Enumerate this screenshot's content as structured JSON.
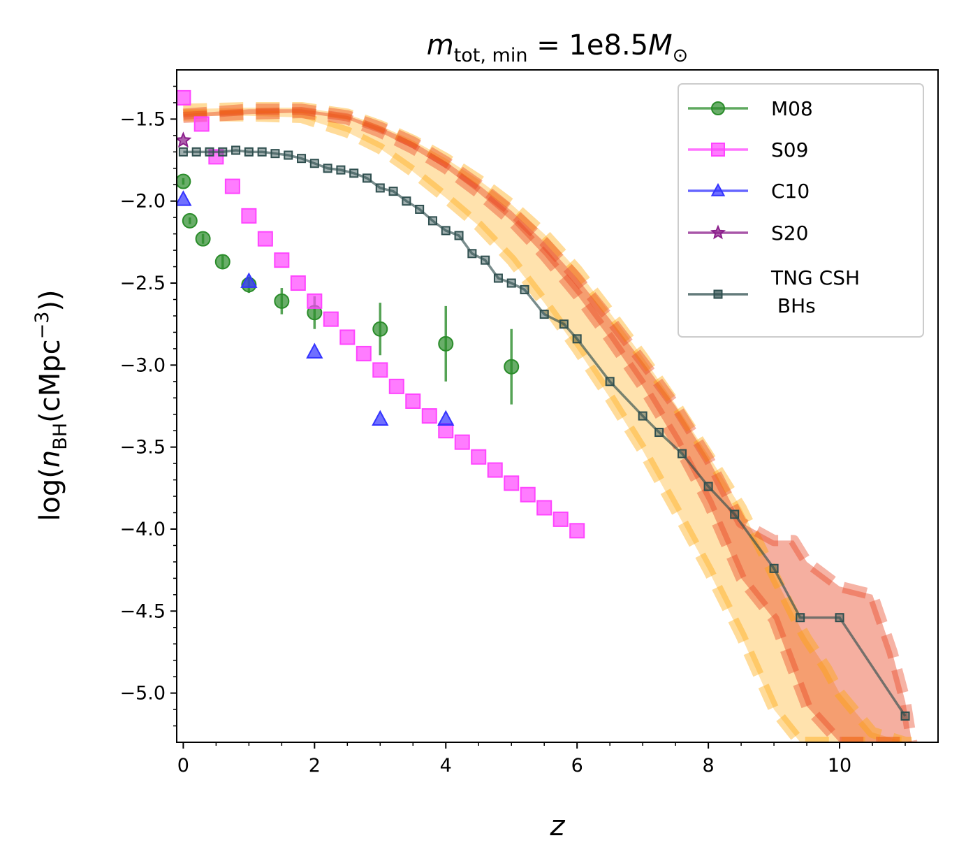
{
  "chart_data": {
    "type": "line",
    "title": "m_tot,min = 1e8.5 M_⊙",
    "title_parts": {
      "m": "m",
      "sub": "tot, min",
      "eq": " = 1e8.5",
      "M": "M",
      "sun": "⊙"
    },
    "xlabel": "z",
    "ylabel_parts": {
      "pre": "log(",
      "n": "n",
      "sub": "BH",
      "mid": "(cMpc",
      "sup": "−3",
      "post": "))"
    },
    "xlim": [
      -0.1,
      11.5
    ],
    "ylim": [
      -5.3,
      -1.2
    ],
    "x_ticks": [
      0,
      2,
      4,
      6,
      8,
      10
    ],
    "x_tick_labels": [
      "0",
      "2",
      "4",
      "6",
      "8",
      "10"
    ],
    "y_ticks": [
      -1.5,
      -2.0,
      -2.5,
      -3.0,
      -3.5,
      -4.0,
      -4.5,
      -5.0
    ],
    "y_tick_labels": [
      "−1.5",
      "−2.0",
      "−2.5",
      "−3.0",
      "−3.5",
      "−4.0",
      "−4.5",
      "−5.0"
    ],
    "legend_position": "upper right",
    "series": [
      {
        "name": "M08",
        "marker": "circle",
        "color": "#2a8c2a",
        "x": [
          0.0,
          0.1,
          0.3,
          0.6,
          1.0,
          1.5,
          2.0,
          3.0,
          4.0,
          5.0
        ],
        "y": [
          -1.88,
          -2.12,
          -2.23,
          -2.37,
          -2.51,
          -2.61,
          -2.68,
          -2.78,
          -2.87,
          -3.01
        ],
        "yerr": [
          0.02,
          0.02,
          0.03,
          0.04,
          0.05,
          0.08,
          0.1,
          0.16,
          0.23,
          0.23
        ]
      },
      {
        "name": "S09",
        "marker": "square",
        "color": "#ff44ff",
        "x": [
          0.0,
          0.28,
          0.5,
          0.75,
          1.0,
          1.25,
          1.5,
          1.75,
          2.0,
          2.25,
          2.5,
          2.75,
          3.0,
          3.25,
          3.5,
          3.75,
          4.0,
          4.25,
          4.5,
          4.75,
          5.0,
          5.25,
          5.5,
          5.75,
          6.0
        ],
        "y": [
          -1.37,
          -1.53,
          -1.73,
          -1.91,
          -2.09,
          -2.23,
          -2.36,
          -2.5,
          -2.61,
          -2.72,
          -2.83,
          -2.93,
          -3.03,
          -3.13,
          -3.22,
          -3.31,
          -3.4,
          -3.47,
          -3.56,
          -3.64,
          -3.72,
          -3.79,
          -3.87,
          -3.94,
          -4.01
        ]
      },
      {
        "name": "C10",
        "marker": "triangle",
        "color": "#3333ff",
        "x": [
          0.0,
          1.0,
          2.0,
          3.0,
          4.0
        ],
        "y": [
          -1.99,
          -2.49,
          -2.92,
          -3.33,
          -3.33
        ]
      },
      {
        "name": "S20",
        "marker": "star",
        "color": "#8b1e8b",
        "x": [
          0.0
        ],
        "y": [
          -1.63
        ]
      },
      {
        "name": "TNG CSH BHs",
        "marker": "small-square",
        "color": "#2f4f4f",
        "x": [
          0.0,
          0.2,
          0.4,
          0.6,
          0.8,
          1.0,
          1.2,
          1.4,
          1.6,
          1.8,
          2.0,
          2.2,
          2.4,
          2.6,
          2.8,
          3.0,
          3.2,
          3.4,
          3.6,
          3.8,
          4.0,
          4.2,
          4.4,
          4.6,
          4.8,
          5.0,
          5.2,
          5.5,
          5.8,
          6.0,
          6.5,
          7.0,
          7.25,
          7.6,
          8.0,
          8.4,
          9.0,
          9.4,
          10.0,
          11.0
        ],
        "y": [
          -1.7,
          -1.7,
          -1.7,
          -1.7,
          -1.69,
          -1.7,
          -1.7,
          -1.71,
          -1.72,
          -1.74,
          -1.77,
          -1.8,
          -1.81,
          -1.83,
          -1.86,
          -1.92,
          -1.94,
          -2.0,
          -2.05,
          -2.12,
          -2.18,
          -2.21,
          -2.32,
          -2.36,
          -2.47,
          -2.5,
          -2.54,
          -2.69,
          -2.75,
          -2.84,
          -3.1,
          -3.31,
          -3.41,
          -3.54,
          -3.74,
          -3.91,
          -4.24,
          -4.54,
          -4.54,
          -5.14
        ]
      },
      {
        "name": "orange-band",
        "role": "shaded region (legend-less)",
        "color": "#ffa500",
        "x": [
          0.0,
          1.0,
          1.8,
          2.5,
          3.0,
          3.5,
          4.0,
          4.5,
          5.0,
          5.5,
          6.0,
          6.5,
          7.0,
          7.5,
          8.0,
          8.5,
          9.0,
          9.4,
          9.5,
          9.8,
          10.0,
          10.5,
          11.0,
          11.1
        ],
        "y_upper": [
          -1.44,
          -1.43,
          -1.43,
          -1.47,
          -1.54,
          -1.63,
          -1.74,
          -1.87,
          -2.02,
          -2.2,
          -2.42,
          -2.68,
          -2.95,
          -3.24,
          -3.55,
          -3.87,
          -4.28,
          -4.6,
          -4.67,
          -4.85,
          -5.0,
          -5.24,
          -5.3,
          -5.3
        ],
        "y_lower": [
          -1.48,
          -1.48,
          -1.49,
          -1.58,
          -1.68,
          -1.82,
          -1.98,
          -2.15,
          -2.36,
          -2.62,
          -2.9,
          -3.2,
          -3.52,
          -3.88,
          -4.25,
          -4.65,
          -5.1,
          -5.3,
          -5.3,
          -5.3,
          -5.3,
          -5.3,
          -5.3,
          -5.3
        ]
      },
      {
        "name": "red-band",
        "role": "shaded region (legend-less)",
        "color": "#e8411d",
        "x": [
          0.0,
          1.0,
          1.8,
          2.5,
          3.0,
          3.5,
          4.0,
          4.5,
          5.0,
          5.5,
          6.0,
          6.5,
          7.0,
          7.5,
          8.0,
          8.5,
          9.0,
          9.3,
          9.5,
          10.0,
          10.5,
          10.8,
          11.0,
          11.1
        ],
        "y_upper": [
          -1.47,
          -1.44,
          -1.44,
          -1.48,
          -1.55,
          -1.64,
          -1.76,
          -1.9,
          -2.06,
          -2.25,
          -2.47,
          -2.72,
          -2.98,
          -3.25,
          -3.57,
          -3.96,
          -4.07,
          -4.07,
          -4.2,
          -4.35,
          -4.4,
          -4.75,
          -5.05,
          -5.3
        ],
        "y_lower": [
          -1.49,
          -1.47,
          -1.46,
          -1.5,
          -1.58,
          -1.68,
          -1.8,
          -1.95,
          -2.12,
          -2.33,
          -2.57,
          -2.84,
          -3.13,
          -3.46,
          -3.84,
          -4.3,
          -4.55,
          -4.87,
          -5.08,
          -5.3,
          -5.3,
          -5.3,
          -5.3,
          -5.3
        ]
      }
    ]
  }
}
